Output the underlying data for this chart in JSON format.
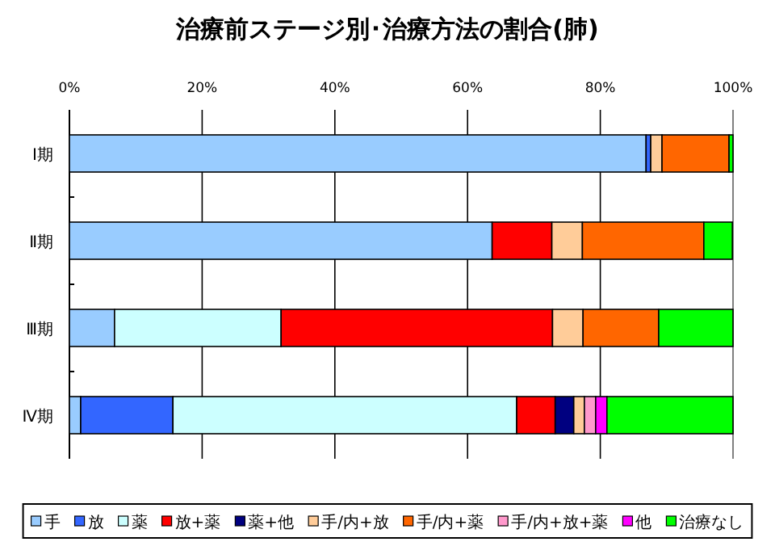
{
  "chart_data": {
    "type": "bar",
    "orientation": "horizontal",
    "stacked": true,
    "title": "治療前ステージ別･治療方法の割合(肺)",
    "categories": [
      "Ⅰ期",
      "Ⅱ期",
      "Ⅲ期",
      "Ⅳ期"
    ],
    "series": [
      {
        "name": "手",
        "color": "#99ccff",
        "values": [
          86.9,
          63.7,
          6.8,
          1.7
        ]
      },
      {
        "name": "放",
        "color": "#3366ff",
        "values": [
          0.7,
          0,
          0,
          13.9
        ]
      },
      {
        "name": "薬",
        "color": "#ccffff",
        "values": [
          0,
          0,
          25.1,
          51.8
        ]
      },
      {
        "name": "放+薬",
        "color": "#ff0000",
        "values": [
          0,
          9.0,
          40.9,
          5.8
        ]
      },
      {
        "name": "薬+他",
        "color": "#000080",
        "values": [
          0,
          0,
          0,
          2.8
        ]
      },
      {
        "name": "手/内+放",
        "color": "#ffcc99",
        "values": [
          1.7,
          4.6,
          4.6,
          1.6
        ]
      },
      {
        "name": "手/内+薬",
        "color": "#ff6600",
        "values": [
          10.1,
          18.3,
          11.4,
          0
        ]
      },
      {
        "name": "手/内+放+薬",
        "color": "#ff99cc",
        "values": [
          0,
          0,
          0,
          1.7
        ]
      },
      {
        "name": "他",
        "color": "#ff00ff",
        "values": [
          0,
          0,
          0,
          1.7
        ]
      },
      {
        "name": "治療なし",
        "color": "#00ff00",
        "values": [
          0.6,
          4.3,
          11.2,
          19.0
        ]
      }
    ],
    "xlim": [
      0,
      100
    ],
    "xticks": [
      {
        "value": 0,
        "label": "0%"
      },
      {
        "value": 20,
        "label": "20%"
      },
      {
        "value": 40,
        "label": "40%"
      },
      {
        "value": 60,
        "label": "60%"
      },
      {
        "value": 80,
        "label": "80%"
      },
      {
        "value": 100,
        "label": "100%"
      }
    ],
    "grid": "x",
    "legend": "bottom"
  }
}
